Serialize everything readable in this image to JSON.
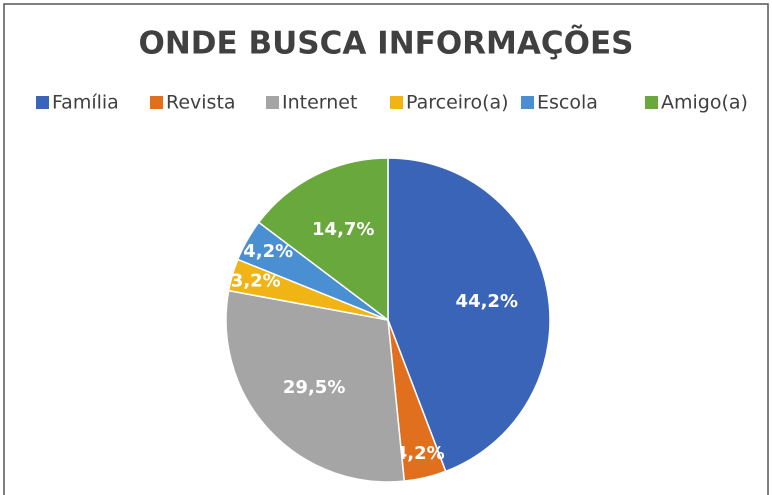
{
  "chart_data": {
    "type": "pie",
    "title": "ONDE BUSCA INFORMAÇÕES",
    "categories": [
      "Família",
      "Revista",
      "Internet",
      "Parceiro(a)",
      "Escola",
      "Amigo(a)"
    ],
    "values": [
      44.2,
      4.2,
      29.5,
      3.2,
      4.2,
      14.7
    ],
    "value_labels": [
      "44,2%",
      "4,2%",
      "29,5%",
      "3,2%",
      "4,2%",
      "14,7%"
    ],
    "colors": [
      "#3a64b8",
      "#e0701e",
      "#a5a5a5",
      "#f0b414",
      "#4a8fd2",
      "#68a83c"
    ],
    "legend": "top"
  }
}
